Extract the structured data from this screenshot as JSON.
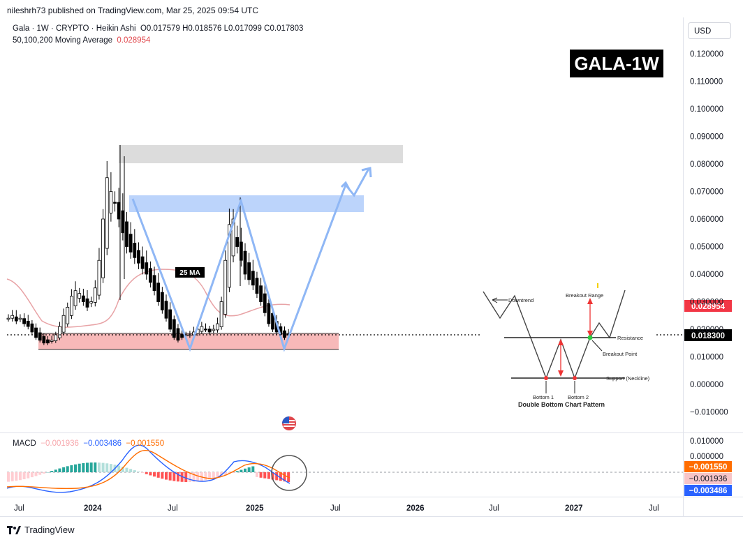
{
  "header": {
    "published_text": "nileshrh73 published on TradingView.com, Mar 25, 2025 09:54 UTC"
  },
  "legend": {
    "symbol_line": "Gala · 1W · CRYPTO · Heikin Ashi",
    "open": "O0.017579",
    "high": "H0.018576",
    "low": "L0.017099",
    "close": "C0.017803",
    "ma_label": "50,100,200 Moving Average",
    "ma_value": "0.028954"
  },
  "currency": "USD",
  "symbol_badge": "GALA-1W",
  "annotation_ma": "25 MA",
  "macd_legend": {
    "label": "MACD",
    "hist": "−0.001936",
    "macd": "−0.003486",
    "signal": "−0.001550"
  },
  "footer": {
    "brand": "TradingView"
  },
  "colors": {
    "up": "#089981",
    "down": "#f23645",
    "candle": "#000000",
    "ma": "#e8a3a6",
    "macd_line": "#2962ff",
    "signal_line": "#ff6d00",
    "zone_red": "#f7b9b9",
    "zone_blue": "#bcd4fb",
    "zone_grey": "#dcdcdc",
    "arrow_blue": "#8fb7f5"
  },
  "chart_data": [
    {
      "type": "candlestick",
      "title": "Gala · 1W · CRYPTO · Heikin Ashi",
      "price_axis": {
        "labels": [
          "0.120000",
          "0.110000",
          "0.100000",
          "0.090000",
          "0.080000",
          "0.070000",
          "0.060000",
          "0.050000",
          "0.040000",
          "0.030000",
          "0.020000",
          "0.010000",
          "0.000000",
          "−0.010000"
        ],
        "ylim": [
          -0.013,
          0.128
        ]
      },
      "time_axis": [
        "Jul",
        "2024",
        "Jul",
        "2025",
        "Jul",
        "2026",
        "Jul",
        "2027",
        "Jul"
      ],
      "price_tags": {
        "ma": "0.028954",
        "last": "0.018300"
      },
      "series": [
        {
          "name": "Gala",
          "close_approx": [
            0.024,
            0.025,
            0.023,
            0.024,
            0.022,
            0.021,
            0.019,
            0.017,
            0.016,
            0.015,
            0.015,
            0.016,
            0.018,
            0.021,
            0.025,
            0.028,
            0.032,
            0.034,
            0.033,
            0.03,
            0.028,
            0.03,
            0.035,
            0.045,
            0.06,
            0.075,
            0.07,
            0.066,
            0.06,
            0.055,
            0.05,
            0.048,
            0.046,
            0.044,
            0.042,
            0.04,
            0.037,
            0.034,
            0.03,
            0.027,
            0.024,
            0.02,
            0.017,
            0.016,
            0.017,
            0.018,
            0.018,
            0.019,
            0.02,
            0.021,
            0.02,
            0.019,
            0.02,
            0.022,
            0.03,
            0.045,
            0.058,
            0.06,
            0.05,
            0.045,
            0.04,
            0.038,
            0.036,
            0.033,
            0.03,
            0.026,
            0.022,
            0.02,
            0.019,
            0.018,
            0.017,
            0.018
          ]
        },
        {
          "name": "50,100,200 Moving Average",
          "value_last": 0.028954
        }
      ],
      "annotations": [
        "25 MA"
      ]
    },
    {
      "type": "macd",
      "axis_labels": [
        "0.010000",
        "0.000000"
      ],
      "tags": {
        "signal": "−0.001550",
        "hist": "−0.001936",
        "macd": "−0.003486"
      }
    }
  ],
  "pattern_inset": {
    "title": "Double Bottom Chart Pattern",
    "labels": {
      "downtrend": "Downtrend",
      "breakout_range": "Breakout Range",
      "resistance": "Resistance",
      "breakout_point": "Breakout Point",
      "support": "Support (Neckline)",
      "bottom1": "Bottom 1",
      "bottom2": "Bottom 2"
    }
  }
}
